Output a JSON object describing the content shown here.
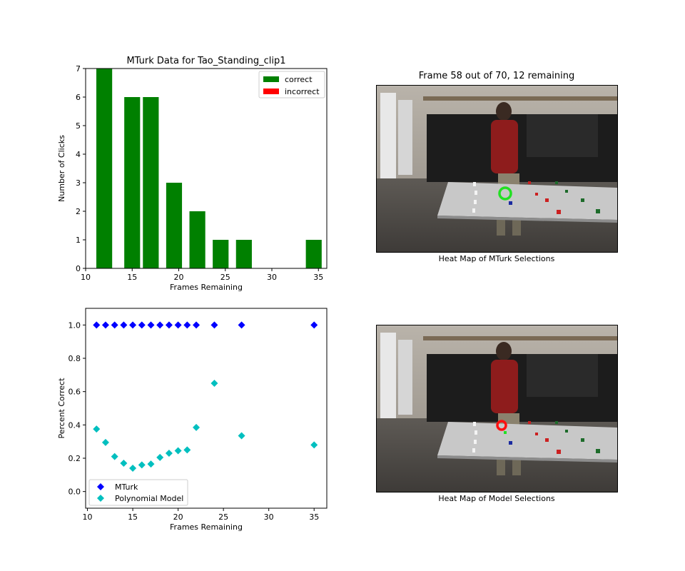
{
  "chart_data": [
    {
      "type": "bar",
      "title": "MTurk Data for Tao_Standing_clip1",
      "xlabel": "Frames Remaining",
      "ylabel": "Number of Clicks",
      "xlim": [
        10,
        35.9
      ],
      "ylim": [
        0,
        7
      ],
      "xticks": [
        10,
        15,
        20,
        25,
        30,
        35
      ],
      "yticks": [
        0,
        1,
        2,
        3,
        4,
        5,
        6,
        7
      ],
      "bar_width": 1.7,
      "legend_position": "upper right",
      "series": [
        {
          "name": "correct",
          "color": "#008000",
          "x": [
            12,
            15,
            17,
            19.5,
            22,
            24.5,
            27,
            34.5
          ],
          "values": [
            7,
            6,
            6,
            3,
            2,
            1,
            1,
            1
          ]
        },
        {
          "name": "incorrect",
          "color": "#ff0000",
          "x": [],
          "values": []
        }
      ]
    },
    {
      "type": "scatter",
      "title": "",
      "xlabel": "Frames Remaining",
      "ylabel": "Percent Correct",
      "xlim": [
        9.8,
        36.4
      ],
      "ylim": [
        -0.1,
        1.1
      ],
      "xticks": [
        10,
        15,
        20,
        25,
        30,
        35
      ],
      "yticks": [
        0.0,
        0.2,
        0.4,
        0.6,
        0.8,
        1.0
      ],
      "legend_position": "lower left",
      "series": [
        {
          "name": "MTurk",
          "color": "#0000ff",
          "marker": "diamond",
          "x": [
            11,
            12,
            13,
            14,
            15,
            16,
            17,
            18,
            19,
            20,
            21,
            22,
            24,
            27,
            35
          ],
          "y": [
            1,
            1,
            1,
            1,
            1,
            1,
            1,
            1,
            1,
            1,
            1,
            1,
            1,
            1,
            1
          ]
        },
        {
          "name": "Polynomial Model",
          "color": "#00bfbf",
          "marker": "diamond",
          "x": [
            11,
            12,
            13,
            14,
            15,
            16,
            17,
            18,
            19,
            20,
            21,
            22,
            24,
            27,
            35
          ],
          "y": [
            0.375,
            0.295,
            0.21,
            0.17,
            0.14,
            0.16,
            0.165,
            0.205,
            0.23,
            0.245,
            0.25,
            0.385,
            0.65,
            0.335,
            0.28
          ]
        }
      ]
    }
  ],
  "frame_panel": {
    "title": "Frame 58 out of 70, 12 remaining",
    "top_caption": "Heat Map of MTurk Selections",
    "bottom_caption": "Heat Map of Model Selections",
    "top_marker_color": "#22e022",
    "bottom_marker_color": "#ff1010"
  }
}
